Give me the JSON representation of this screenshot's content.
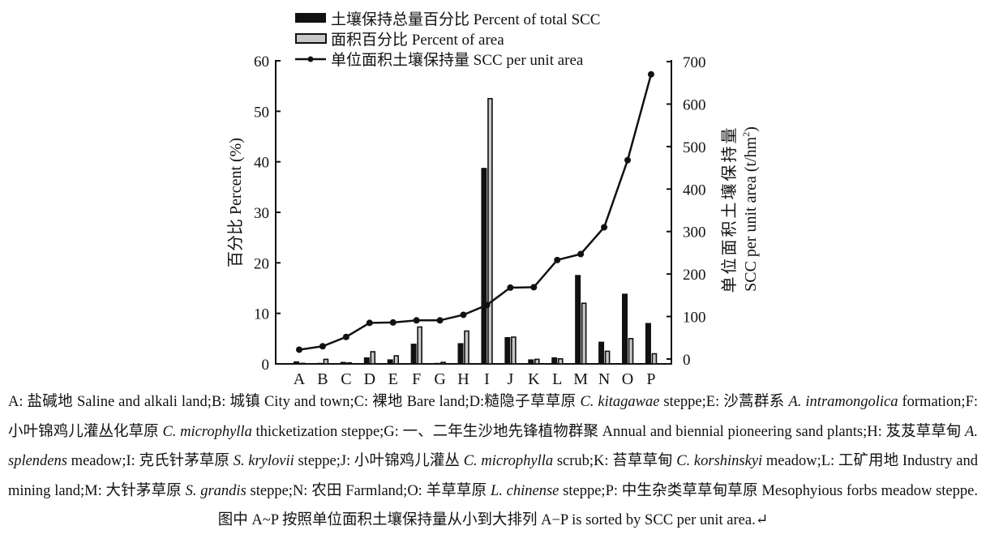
{
  "chart_data": {
    "type": "bar+line",
    "categories": [
      "A",
      "B",
      "C",
      "D",
      "E",
      "F",
      "G",
      "H",
      "I",
      "J",
      "K",
      "L",
      "M",
      "N",
      "O",
      "P"
    ],
    "series": [
      {
        "name": "土壤保持总量百分比 Percent of total SCC",
        "type": "bar",
        "axis": "left",
        "color": "#111111",
        "values": [
          0.5,
          0.2,
          0.4,
          1.3,
          0.9,
          4.0,
          0.2,
          4.1,
          38.8,
          5.3,
          0.9,
          1.3,
          17.6,
          4.4,
          13.9,
          8.1
        ]
      },
      {
        "name": "面积百分比 Percent of area",
        "type": "bar",
        "axis": "left",
        "color": "#c8c8c8",
        "values": [
          0.1,
          0.9,
          0.2,
          2.4,
          1.6,
          7.3,
          0.3,
          6.5,
          52.5,
          5.3,
          0.9,
          1.0,
          12.0,
          2.5,
          5.0,
          2.0
        ]
      },
      {
        "name": "单位面积土壤保持量 SCC per unit area",
        "type": "line",
        "axis": "right",
        "color": "#111111",
        "values": [
          22,
          30,
          52,
          85,
          86,
          91,
          91,
          104,
          127,
          168,
          169,
          233,
          247,
          310,
          468,
          670
        ]
      }
    ],
    "ylabel": "百分比 Percent (%)",
    "y2label_cn": "单位面积土壤保持量",
    "y2label_en": "SCC per unit area (t/hm",
    "y2label_sup": "2",
    "y2label_close": ")",
    "ylim": [
      0,
      60
    ],
    "y2lim": [
      0,
      700
    ],
    "yticks": [
      0,
      10,
      20,
      30,
      40,
      50,
      60
    ],
    "y2ticks": [
      0,
      100,
      200,
      300,
      400,
      500,
      600,
      700
    ],
    "grid": false,
    "legend": "top"
  },
  "caption": [
    {
      "t": "A: 盐碱地 Saline and alkali land;B: 城镇 City and town;C: 裸地 Bare land;D:糙隐子草草原 "
    },
    {
      "t": "C. kitagawae",
      "i": true
    },
    {
      "t": " steppe;E: 沙蒿群系 "
    },
    {
      "t": "A. intramongolica",
      "i": true
    },
    {
      "t": " formation;F: 小叶锦鸡儿灌丛化草原 "
    },
    {
      "t": "C. microphylla",
      "i": true
    },
    {
      "t": " thicketization steppe;G: 一、二年生沙地先锋植物群聚 Annual and biennial pioneering sand plants;H: 芨芨草草甸 "
    },
    {
      "t": "A. splendens",
      "i": true
    },
    {
      "t": " meadow;I: 克氏针茅草原 "
    },
    {
      "t": "S. krylovii",
      "i": true
    },
    {
      "t": " steppe;J: 小叶锦鸡儿灌丛 "
    },
    {
      "t": "C. microphylla",
      "i": true
    },
    {
      "t": " scrub;K: 苔草草甸 "
    },
    {
      "t": "C. korshinskyi",
      "i": true
    },
    {
      "t": " meadow;L: 工矿用地 Industry and mining land;M: 大针茅草原 "
    },
    {
      "t": "S. grandis",
      "i": true
    },
    {
      "t": " steppe;N: 农田 Farmland;O: 羊草草原 "
    },
    {
      "t": "L. chinense",
      "i": true
    },
    {
      "t": " steppe;P: 中生杂类草草甸草原 Mesophyious forbs meadow steppe. 图中 A~P 按照单位面积土壤保持量从小到大排列 A−P is sorted by SCC per unit area.↵"
    }
  ]
}
